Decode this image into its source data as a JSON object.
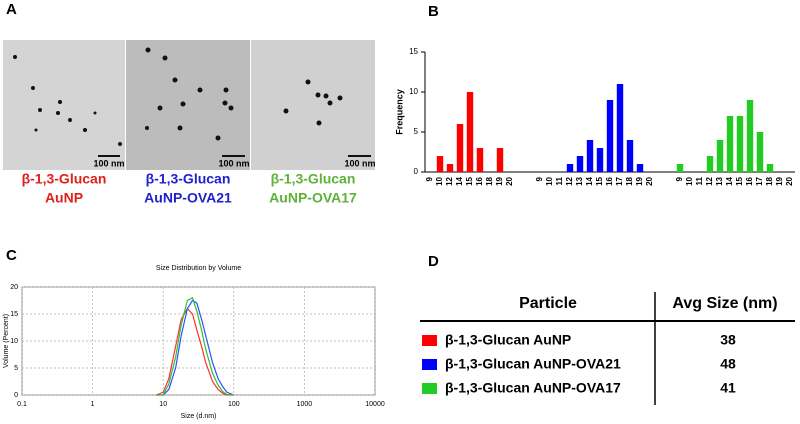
{
  "panel_labels": [
    "A",
    "B",
    "C",
    "D"
  ],
  "tem": [
    {
      "scale": "100 nm",
      "caption": [
        "β-1,3-Glucan",
        "AuNP"
      ],
      "color": "#e0201b"
    },
    {
      "scale": "100 nm",
      "caption": [
        "β-1,3-Glucan",
        "AuNP-OVA21"
      ],
      "color": "#1f1fd0"
    },
    {
      "scale": "100 nm",
      "caption": [
        "β-1,3-Glucan",
        "AuNP-OVA17"
      ],
      "color": "#5db23a"
    }
  ],
  "chart_data": [
    {
      "type": "bar",
      "ylabel": "Frequency",
      "categories": [
        "9",
        "10",
        "12",
        "14",
        "15",
        "16",
        "18",
        "19",
        "20",
        null,
        null,
        "9",
        "10",
        "11",
        "12",
        "13",
        "14",
        "15",
        "16",
        "17",
        "18",
        "19",
        "20",
        null,
        null,
        "9",
        "10",
        "11",
        "12",
        "13",
        "14",
        "15",
        "16",
        "17",
        "18",
        "19",
        "20"
      ],
      "series": [
        {
          "color": "#ff0000",
          "values": [
            null,
            2,
            1,
            6,
            10,
            3,
            null,
            3,
            null,
            null,
            null,
            null,
            null,
            null,
            null,
            null,
            null,
            null,
            null,
            null,
            null,
            null,
            null,
            null,
            null,
            null,
            null,
            null,
            null,
            null,
            null,
            null,
            null,
            null,
            null,
            null,
            null
          ]
        },
        {
          "color": "#0000ff",
          "values": [
            null,
            null,
            null,
            null,
            null,
            null,
            null,
            null,
            null,
            null,
            null,
            null,
            null,
            null,
            1,
            2,
            4,
            3,
            9,
            11,
            4,
            1,
            null,
            null,
            null,
            null,
            null,
            null,
            null,
            null,
            null,
            null,
            null,
            null,
            null,
            null,
            null
          ]
        },
        {
          "color": "#22cc22",
          "values": [
            null,
            null,
            null,
            null,
            null,
            null,
            null,
            null,
            null,
            null,
            null,
            null,
            null,
            null,
            null,
            null,
            null,
            null,
            null,
            null,
            null,
            null,
            null,
            null,
            null,
            1,
            null,
            null,
            2,
            4,
            7,
            7,
            9,
            5,
            1,
            null,
            null
          ]
        }
      ],
      "ylim": [
        0,
        15
      ],
      "yticks": [
        0,
        5,
        10,
        15
      ]
    },
    {
      "type": "line",
      "title": "Size Distribution by Volume",
      "xlabel": "Size (d.nm)",
      "ylabel": "Volume (Percent)",
      "x": [
        8,
        10,
        12,
        15,
        18,
        22,
        26,
        30,
        35,
        40,
        50,
        60,
        70,
        80,
        100
      ],
      "series": [
        {
          "color": "#ff3030",
          "values": [
            0,
            0.5,
            3,
            9,
            14,
            16,
            15,
            12,
            9,
            6,
            2.5,
            1,
            0.3,
            0,
            0
          ]
        },
        {
          "color": "#3050ff",
          "values": [
            0,
            0,
            1,
            5,
            11,
            16,
            17.5,
            17,
            14,
            11,
            6,
            3,
            1.5,
            0.5,
            0
          ]
        },
        {
          "color": "#30c030",
          "values": [
            0,
            0,
            2,
            7,
            13,
            17.5,
            18,
            15.5,
            12,
            8.5,
            4,
            1.8,
            0.6,
            0.1,
            0
          ]
        }
      ],
      "log_x": true,
      "grid": true,
      "xlim": [
        0.1,
        10000
      ],
      "xticks": [
        0.1,
        1,
        10,
        100,
        1000,
        10000
      ],
      "ylim": [
        0,
        20
      ],
      "yticks": [
        0,
        5,
        10,
        15,
        20
      ]
    }
  ],
  "table": {
    "header": [
      "Particle",
      "Avg Size (nm)"
    ],
    "rows": [
      {
        "color": "#ff0000",
        "cells": [
          "β-1,3-Glucan AuNP",
          "38"
        ]
      },
      {
        "color": "#0000ff",
        "cells": [
          "β-1,3-Glucan AuNP-OVA21",
          "48"
        ]
      },
      {
        "color": "#22cc22",
        "cells": [
          "β-1,3-Glucan AuNP-OVA17",
          "41"
        ]
      }
    ]
  }
}
